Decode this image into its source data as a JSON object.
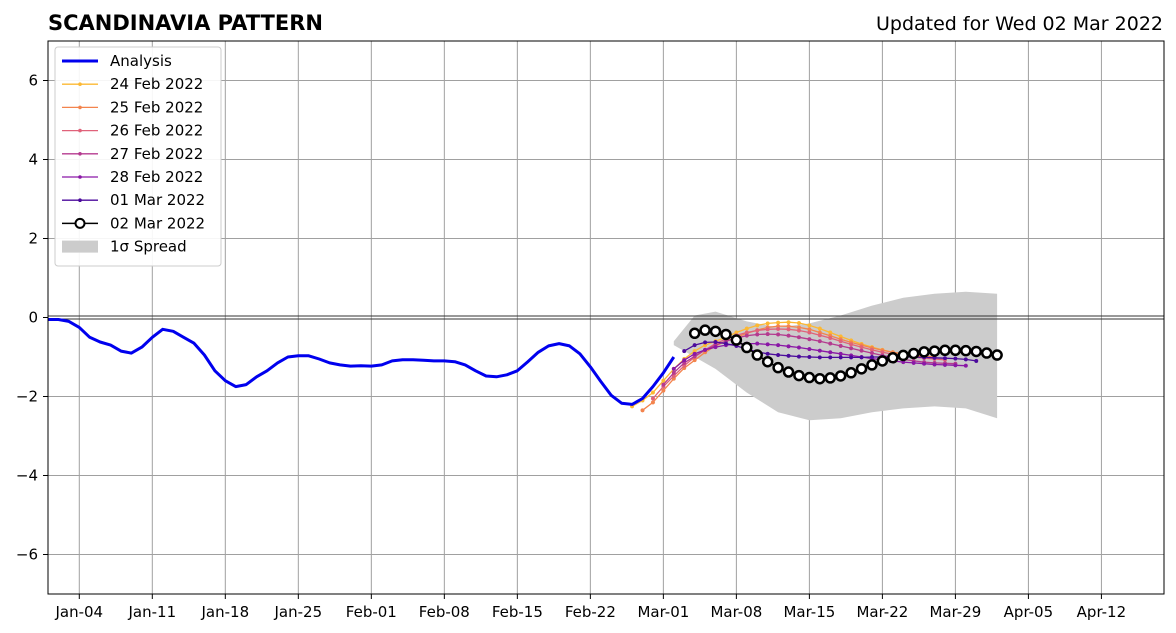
{
  "chart_data": {
    "type": "line",
    "title": "SCANDINAVIA PATTERN",
    "subtitle": "Updated for Wed 02 Mar 2022",
    "xlabel": "",
    "ylabel": "",
    "ylim": [
      -7,
      7
    ],
    "yticks": [
      -6,
      -4,
      -2,
      0,
      2,
      4,
      6
    ],
    "ytick_labels": [
      "−6",
      "−4",
      "−2",
      "0",
      "2",
      "4",
      "6"
    ],
    "x_start": "2022-01-01",
    "x_end": "2022-04-18",
    "xticks": [
      "2022-01-04",
      "2022-01-11",
      "2022-01-18",
      "2022-01-25",
      "2022-02-01",
      "2022-02-08",
      "2022-02-15",
      "2022-02-22",
      "2022-03-01",
      "2022-03-08",
      "2022-03-15",
      "2022-03-22",
      "2022-03-29",
      "2022-04-05",
      "2022-04-12"
    ],
    "xtick_labels": [
      "Jan-04",
      "Jan-11",
      "Jan-18",
      "Jan-25",
      "Feb-01",
      "Feb-08",
      "Feb-15",
      "Feb-22",
      "Mar-01",
      "Mar-08",
      "Mar-15",
      "Mar-22",
      "Mar-29",
      "Apr-05",
      "Apr-12"
    ],
    "grid": true,
    "zero_line": 0,
    "legend_placement": "upper-left",
    "legend": [
      {
        "label": "Analysis",
        "kind": "line",
        "color": "#0000ee"
      },
      {
        "label": "24 Feb 2022",
        "kind": "line-dot",
        "color": "#fcb833"
      },
      {
        "label": "25 Feb 2022",
        "kind": "line-dot",
        "color": "#f3844d"
      },
      {
        "label": "26 Feb 2022",
        "kind": "line-dot",
        "color": "#e0627a"
      },
      {
        "label": "27 Feb 2022",
        "kind": "line-dot",
        "color": "#b43a8f"
      },
      {
        "label": "28 Feb 2022",
        "kind": "line-dot",
        "color": "#8a17a6"
      },
      {
        "label": "01 Mar 2022",
        "kind": "line-dot",
        "color": "#4b0a9c"
      },
      {
        "label": "02 Mar 2022",
        "kind": "line-circle",
        "color": "#000000"
      },
      {
        "label": "1σ Spread",
        "kind": "patch",
        "color": "#cccccc"
      }
    ],
    "spread": {
      "name": "1σ Spread",
      "color": "#cccccc",
      "x": [
        "2022-03-02",
        "2022-03-04",
        "2022-03-06",
        "2022-03-09",
        "2022-03-12",
        "2022-03-15",
        "2022-03-18",
        "2022-03-21",
        "2022-03-24",
        "2022-03-27",
        "2022-03-30",
        "2022-04-02"
      ],
      "upper": [
        -0.6,
        0.05,
        0.15,
        -0.1,
        -0.25,
        -0.15,
        0.05,
        0.3,
        0.5,
        0.6,
        0.65,
        0.6
      ],
      "lower": [
        -0.7,
        -1.0,
        -1.3,
        -1.9,
        -2.4,
        -2.6,
        -2.55,
        -2.4,
        -2.3,
        -2.25,
        -2.3,
        -2.55
      ]
    },
    "analysis": {
      "name": "Analysis",
      "color": "#0000ee",
      "x": [
        "2022-01-01",
        "2022-01-02",
        "2022-01-03",
        "2022-01-04",
        "2022-01-05",
        "2022-01-06",
        "2022-01-07",
        "2022-01-08",
        "2022-01-09",
        "2022-01-10",
        "2022-01-11",
        "2022-01-12",
        "2022-01-13",
        "2022-01-14",
        "2022-01-15",
        "2022-01-16",
        "2022-01-17",
        "2022-01-18",
        "2022-01-19",
        "2022-01-20",
        "2022-01-21",
        "2022-01-22",
        "2022-01-23",
        "2022-01-24",
        "2022-01-25",
        "2022-01-26",
        "2022-01-27",
        "2022-01-28",
        "2022-01-29",
        "2022-01-30",
        "2022-01-31",
        "2022-02-01",
        "2022-02-02",
        "2022-02-03",
        "2022-02-04",
        "2022-02-05",
        "2022-02-06",
        "2022-02-07",
        "2022-02-08",
        "2022-02-09",
        "2022-02-10",
        "2022-02-11",
        "2022-02-12",
        "2022-02-13",
        "2022-02-14",
        "2022-02-15",
        "2022-02-16",
        "2022-02-17",
        "2022-02-18",
        "2022-02-19",
        "2022-02-20",
        "2022-02-21",
        "2022-02-22",
        "2022-02-23",
        "2022-02-24",
        "2022-02-25",
        "2022-02-26",
        "2022-02-27",
        "2022-02-28",
        "2022-03-01",
        "2022-03-02"
      ],
      "values": [
        -0.05,
        -0.05,
        -0.1,
        -0.25,
        -0.5,
        -0.62,
        -0.7,
        -0.85,
        -0.9,
        -0.75,
        -0.5,
        -0.3,
        -0.35,
        -0.5,
        -0.65,
        -0.95,
        -1.35,
        -1.6,
        -1.75,
        -1.7,
        -1.5,
        -1.35,
        -1.15,
        -1.0,
        -0.97,
        -0.97,
        -1.05,
        -1.15,
        -1.2,
        -1.23,
        -1.22,
        -1.23,
        -1.2,
        -1.1,
        -1.07,
        -1.07,
        -1.08,
        -1.1,
        -1.1,
        -1.12,
        -1.2,
        -1.35,
        -1.48,
        -1.5,
        -1.45,
        -1.35,
        -1.12,
        -0.88,
        -0.72,
        -0.66,
        -0.72,
        -0.92,
        -1.25,
        -1.62,
        -1.97,
        -2.17,
        -2.2,
        -2.05,
        -1.75,
        -1.4,
        -1.0
      ]
    },
    "series": [
      {
        "name": "24 Feb 2022",
        "color": "#fcb833",
        "marker": "dot",
        "x": [
          "2022-02-26",
          "2022-02-27",
          "2022-02-28",
          "2022-03-01",
          "2022-03-02",
          "2022-03-03",
          "2022-03-04",
          "2022-03-05",
          "2022-03-06",
          "2022-03-07",
          "2022-03-08",
          "2022-03-09",
          "2022-03-10",
          "2022-03-11",
          "2022-03-12",
          "2022-03-13",
          "2022-03-14",
          "2022-03-15",
          "2022-03-16",
          "2022-03-17",
          "2022-03-18",
          "2022-03-19",
          "2022-03-20",
          "2022-03-21",
          "2022-03-22",
          "2022-03-23",
          "2022-03-24",
          "2022-03-25",
          "2022-03-26"
        ],
        "values": [
          -2.25,
          -2.1,
          -1.9,
          -1.6,
          -1.3,
          -1.05,
          -0.85,
          -0.7,
          -0.6,
          -0.5,
          -0.38,
          -0.28,
          -0.2,
          -0.15,
          -0.13,
          -0.12,
          -0.14,
          -0.2,
          -0.28,
          -0.38,
          -0.48,
          -0.58,
          -0.67,
          -0.75,
          -0.82,
          -0.88,
          -0.93,
          -0.96,
          -1.0
        ]
      },
      {
        "name": "25 Feb 2022",
        "color": "#f3844d",
        "marker": "dot",
        "x": [
          "2022-02-27",
          "2022-02-28",
          "2022-03-01",
          "2022-03-02",
          "2022-03-03",
          "2022-03-04",
          "2022-03-05",
          "2022-03-06",
          "2022-03-07",
          "2022-03-08",
          "2022-03-09",
          "2022-03-10",
          "2022-03-11",
          "2022-03-12",
          "2022-03-13",
          "2022-03-14",
          "2022-03-15",
          "2022-03-16",
          "2022-03-17",
          "2022-03-18",
          "2022-03-19",
          "2022-03-20",
          "2022-03-21",
          "2022-03-22",
          "2022-03-23",
          "2022-03-24",
          "2022-03-25",
          "2022-03-26",
          "2022-03-27"
        ],
        "values": [
          -2.35,
          -2.15,
          -1.85,
          -1.55,
          -1.28,
          -1.08,
          -0.88,
          -0.72,
          -0.6,
          -0.5,
          -0.4,
          -0.32,
          -0.25,
          -0.22,
          -0.22,
          -0.25,
          -0.3,
          -0.38,
          -0.46,
          -0.55,
          -0.63,
          -0.7,
          -0.77,
          -0.83,
          -0.88,
          -0.92,
          -0.95,
          -0.98,
          -1.0
        ]
      },
      {
        "name": "26 Feb 2022",
        "color": "#e0627a",
        "marker": "dot",
        "x": [
          "2022-02-28",
          "2022-03-01",
          "2022-03-02",
          "2022-03-03",
          "2022-03-04",
          "2022-03-05",
          "2022-03-06",
          "2022-03-07",
          "2022-03-08",
          "2022-03-09",
          "2022-03-10",
          "2022-03-11",
          "2022-03-12",
          "2022-03-13",
          "2022-03-14",
          "2022-03-15",
          "2022-03-16",
          "2022-03-17",
          "2022-03-18",
          "2022-03-19",
          "2022-03-20",
          "2022-03-21",
          "2022-03-22",
          "2022-03-23",
          "2022-03-24",
          "2022-03-25",
          "2022-03-26",
          "2022-03-27",
          "2022-03-28"
        ],
        "values": [
          -2.05,
          -1.75,
          -1.48,
          -1.22,
          -1.0,
          -0.82,
          -0.66,
          -0.55,
          -0.45,
          -0.38,
          -0.33,
          -0.3,
          -0.29,
          -0.3,
          -0.33,
          -0.38,
          -0.45,
          -0.52,
          -0.6,
          -0.68,
          -0.75,
          -0.82,
          -0.88,
          -0.93,
          -0.97,
          -1.0,
          -1.03,
          -1.05,
          -1.07
        ]
      },
      {
        "name": "27 Feb 2022",
        "color": "#b43a8f",
        "marker": "dot",
        "x": [
          "2022-03-01",
          "2022-03-02",
          "2022-03-03",
          "2022-03-04",
          "2022-03-05",
          "2022-03-06",
          "2022-03-07",
          "2022-03-08",
          "2022-03-09",
          "2022-03-10",
          "2022-03-11",
          "2022-03-12",
          "2022-03-13",
          "2022-03-14",
          "2022-03-15",
          "2022-03-16",
          "2022-03-17",
          "2022-03-18",
          "2022-03-19",
          "2022-03-20",
          "2022-03-21",
          "2022-03-22",
          "2022-03-23",
          "2022-03-24",
          "2022-03-25",
          "2022-03-26",
          "2022-03-27",
          "2022-03-28",
          "2022-03-29"
        ],
        "values": [
          -1.7,
          -1.4,
          -1.15,
          -0.98,
          -0.82,
          -0.7,
          -0.6,
          -0.52,
          -0.46,
          -0.43,
          -0.42,
          -0.43,
          -0.46,
          -0.5,
          -0.55,
          -0.6,
          -0.66,
          -0.72,
          -0.78,
          -0.84,
          -0.9,
          -0.96,
          -1.01,
          -1.06,
          -1.1,
          -1.13,
          -1.15,
          -1.16,
          -1.17
        ]
      },
      {
        "name": "28 Feb 2022",
        "color": "#8a17a6",
        "marker": "dot",
        "x": [
          "2022-03-02",
          "2022-03-03",
          "2022-03-04",
          "2022-03-05",
          "2022-03-06",
          "2022-03-07",
          "2022-03-08",
          "2022-03-09",
          "2022-03-10",
          "2022-03-11",
          "2022-03-12",
          "2022-03-13",
          "2022-03-14",
          "2022-03-15",
          "2022-03-16",
          "2022-03-17",
          "2022-03-18",
          "2022-03-19",
          "2022-03-20",
          "2022-03-21",
          "2022-03-22",
          "2022-03-23",
          "2022-03-24",
          "2022-03-25",
          "2022-03-26",
          "2022-03-27",
          "2022-03-28",
          "2022-03-29",
          "2022-03-30"
        ],
        "values": [
          -1.3,
          -1.08,
          -0.92,
          -0.82,
          -0.75,
          -0.7,
          -0.67,
          -0.66,
          -0.66,
          -0.68,
          -0.7,
          -0.73,
          -0.76,
          -0.8,
          -0.84,
          -0.88,
          -0.92,
          -0.96,
          -1.0,
          -1.04,
          -1.07,
          -1.1,
          -1.13,
          -1.15,
          -1.17,
          -1.19,
          -1.2,
          -1.21,
          -1.22
        ]
      },
      {
        "name": "01 Mar 2022",
        "color": "#4b0a9c",
        "marker": "dot",
        "x": [
          "2022-03-03",
          "2022-03-04",
          "2022-03-05",
          "2022-03-06",
          "2022-03-07",
          "2022-03-08",
          "2022-03-09",
          "2022-03-10",
          "2022-03-11",
          "2022-03-12",
          "2022-03-13",
          "2022-03-14",
          "2022-03-15",
          "2022-03-16",
          "2022-03-17",
          "2022-03-18",
          "2022-03-19",
          "2022-03-20",
          "2022-03-21",
          "2022-03-22",
          "2022-03-23",
          "2022-03-24",
          "2022-03-25",
          "2022-03-26",
          "2022-03-27",
          "2022-03-28",
          "2022-03-29",
          "2022-03-30",
          "2022-03-31"
        ],
        "values": [
          -0.85,
          -0.7,
          -0.63,
          -0.62,
          -0.66,
          -0.72,
          -0.8,
          -0.87,
          -0.92,
          -0.95,
          -0.97,
          -0.99,
          -1.0,
          -1.01,
          -1.01,
          -1.01,
          -1.01,
          -1.01,
          -1.0,
          -1.0,
          -1.0,
          -1.0,
          -1.0,
          -1.01,
          -1.02,
          -1.03,
          -1.04,
          -1.06,
          -1.1
        ]
      },
      {
        "name": "02 Mar 2022",
        "color": "#000000",
        "marker": "circle",
        "x": [
          "2022-03-04",
          "2022-03-05",
          "2022-03-06",
          "2022-03-07",
          "2022-03-08",
          "2022-03-09",
          "2022-03-10",
          "2022-03-11",
          "2022-03-12",
          "2022-03-13",
          "2022-03-14",
          "2022-03-15",
          "2022-03-16",
          "2022-03-17",
          "2022-03-18",
          "2022-03-19",
          "2022-03-20",
          "2022-03-21",
          "2022-03-22",
          "2022-03-23",
          "2022-03-24",
          "2022-03-25",
          "2022-03-26",
          "2022-03-27",
          "2022-03-28",
          "2022-03-29",
          "2022-03-30",
          "2022-03-31",
          "2022-04-01",
          "2022-04-02"
        ],
        "values": [
          -0.4,
          -0.32,
          -0.35,
          -0.43,
          -0.57,
          -0.76,
          -0.95,
          -1.12,
          -1.27,
          -1.38,
          -1.47,
          -1.52,
          -1.55,
          -1.53,
          -1.48,
          -1.4,
          -1.3,
          -1.2,
          -1.1,
          -1.02,
          -0.96,
          -0.91,
          -0.87,
          -0.85,
          -0.83,
          -0.83,
          -0.84,
          -0.86,
          -0.9,
          -0.95
        ]
      }
    ]
  }
}
